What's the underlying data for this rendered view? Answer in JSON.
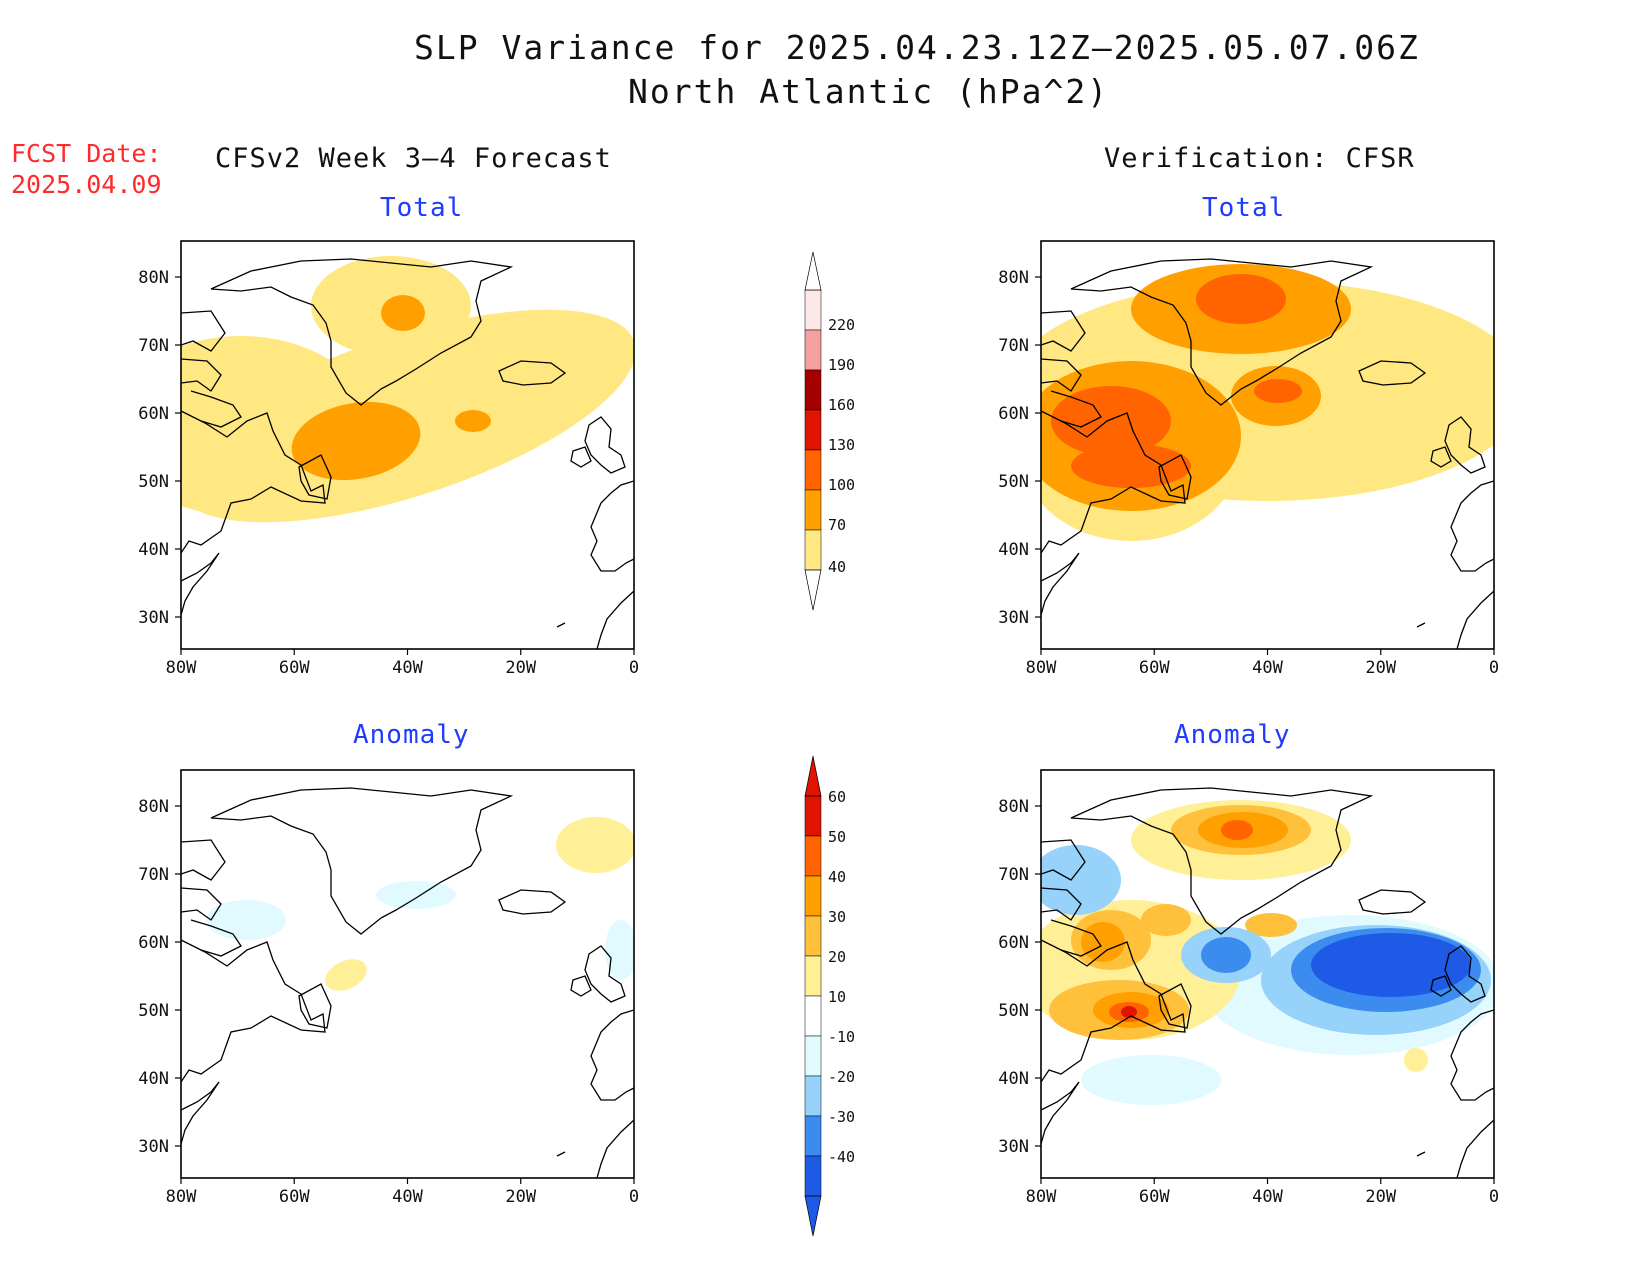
{
  "title": {
    "line1": "SLP Variance for 2025.04.23.12Z–2025.05.07.06Z",
    "line2": "North Atlantic (hPa^2)"
  },
  "fcst": {
    "label": "FCST Date:",
    "date": "2025.04.09"
  },
  "left_header": "CFSv2 Week 3–4 Forecast",
  "right_header": "Verification: CFSR",
  "panel_titles": {
    "total": "Total",
    "anomaly": "Anomaly"
  },
  "axes": {
    "lat_labels": [
      "80N",
      "70N",
      "60N",
      "50N",
      "40N",
      "30N"
    ],
    "lon_labels": [
      "80W",
      "60W",
      "40W",
      "20W",
      "0"
    ]
  },
  "total_colorbar": {
    "ticks": [
      "40",
      "70",
      "100",
      "130",
      "160",
      "190",
      "220"
    ],
    "colors": [
      "#ffe882",
      "#ffa000",
      "#ff6400",
      "#e01400",
      "#a50000",
      "#f5a0a0",
      "#fde8e8"
    ]
  },
  "anomaly_colorbar": {
    "ticks": [
      "60",
      "50",
      "40",
      "30",
      "20",
      "10",
      "-10",
      "-20",
      "-30",
      "-40"
    ],
    "colors": [
      "#a50000",
      "#e01400",
      "#ff6400",
      "#ffa000",
      "#ffc03c",
      "#ffef96",
      "#ffffff",
      "#e1faff",
      "#96d2fa",
      "#3c8cf0",
      "#1e5ae6",
      "#1060d8"
    ]
  },
  "map_colors": {
    "c40": "#ffe882",
    "c70": "#ffa000",
    "c100": "#ff6400",
    "c130": "#e01400",
    "a10": "#ffef96",
    "a20": "#ffc03c",
    "a30": "#ffa000",
    "a40": "#ff6400",
    "a50": "#e01400",
    "n10": "#e1faff",
    "n20": "#96d2fa",
    "n30": "#3c8cf0",
    "n40": "#1e5ae6"
  }
}
